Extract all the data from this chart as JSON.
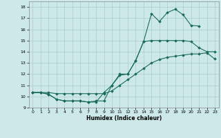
{
  "xlabel": "Humidex (Indice chaleur)",
  "bg_color": "#cce8e8",
  "grid_color": "#aacccc",
  "line_color": "#1a6b5a",
  "xlim": [
    -0.5,
    23.5
  ],
  "ylim": [
    9,
    18.5
  ],
  "xticks": [
    0,
    1,
    2,
    3,
    4,
    5,
    6,
    7,
    8,
    9,
    10,
    11,
    12,
    13,
    14,
    15,
    16,
    17,
    18,
    19,
    20,
    21,
    22,
    23
  ],
  "yticks": [
    9,
    10,
    11,
    12,
    13,
    14,
    15,
    16,
    17,
    18
  ],
  "line1_x": [
    0,
    1,
    2,
    3,
    4,
    5,
    6,
    7,
    8,
    9,
    10,
    11,
    12,
    13,
    14,
    15,
    16,
    17,
    18,
    19,
    20,
    21,
    22,
    23
  ],
  "line1_y": [
    10.35,
    10.35,
    10.35,
    10.25,
    10.25,
    10.25,
    10.25,
    10.25,
    10.25,
    10.25,
    10.5,
    11.0,
    11.5,
    12.0,
    12.5,
    13.0,
    13.3,
    13.5,
    13.6,
    13.7,
    13.8,
    13.8,
    13.9,
    13.35
  ],
  "line2_x": [
    0,
    1,
    2,
    3,
    4,
    5,
    6,
    7,
    8,
    9,
    10,
    11,
    12,
    13,
    14,
    15,
    16,
    17,
    18,
    19,
    20,
    21,
    22,
    23
  ],
  "line2_y": [
    10.35,
    10.35,
    10.2,
    9.75,
    9.6,
    9.6,
    9.6,
    9.5,
    9.6,
    9.6,
    11.0,
    12.0,
    12.0,
    13.2,
    14.9,
    15.0,
    15.0,
    15.0,
    15.0,
    15.0,
    14.9,
    14.35,
    14.0,
    14.0
  ],
  "line3_x": [
    0,
    1,
    2,
    3,
    4,
    5,
    6,
    7,
    8,
    9,
    10,
    11,
    12,
    13,
    14,
    15,
    16,
    17,
    18,
    19,
    20,
    21,
    22,
    23
  ],
  "line3_y": [
    10.35,
    10.35,
    10.2,
    9.75,
    9.6,
    9.6,
    9.6,
    9.5,
    9.5,
    10.35,
    11.0,
    11.9,
    12.0,
    13.2,
    14.9,
    17.4,
    16.7,
    17.5,
    17.8,
    17.3,
    16.35,
    16.3,
    null,
    null
  ]
}
